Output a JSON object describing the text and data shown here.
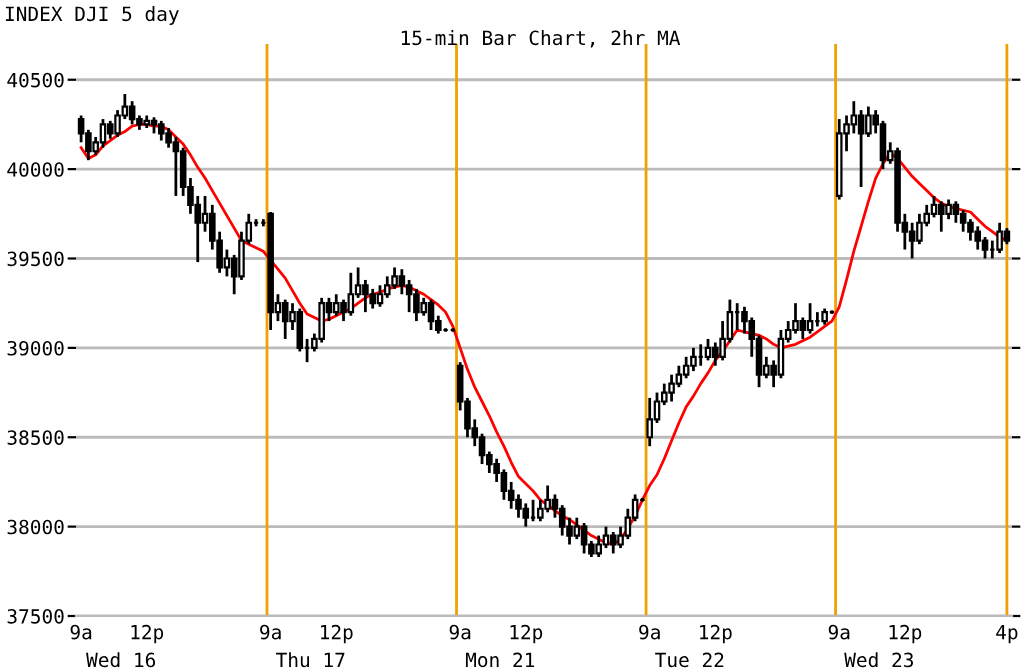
{
  "chart_data": {
    "type": "candlestick",
    "title": "INDEX DJI 5 day",
    "subtitle": "15-min Bar Chart, 2hr MA",
    "categories": [
      "9a",
      null,
      null,
      null,
      null,
      null,
      null,
      null,
      null,
      "12p",
      null,
      null,
      null,
      null,
      null,
      null,
      null,
      null,
      null,
      null,
      null,
      null,
      null,
      null,
      null,
      null,
      "9a",
      null,
      null,
      null,
      null,
      null,
      null,
      null,
      null,
      "12p",
      null,
      null,
      null,
      null,
      null,
      null,
      null,
      null,
      null,
      null,
      null,
      null,
      null,
      null,
      null,
      null,
      "9a",
      null,
      null,
      null,
      null,
      null,
      null,
      null,
      null,
      "12p",
      null,
      null,
      null,
      null,
      null,
      null,
      null,
      null,
      null,
      null,
      null,
      null,
      null,
      null,
      null,
      null,
      "9a",
      null,
      null,
      null,
      null,
      null,
      null,
      null,
      null,
      "12p",
      null,
      null,
      null,
      null,
      null,
      null,
      null,
      null,
      null,
      null,
      null,
      null,
      null,
      null,
      null,
      null,
      "9a",
      null,
      null,
      null,
      null,
      null,
      null,
      null,
      null,
      "12p",
      null,
      null,
      null,
      null,
      null,
      null,
      null,
      null,
      null,
      null,
      null,
      null,
      null,
      "4p"
    ],
    "ohlc": [
      [
        40280,
        40300,
        40150,
        40200
      ],
      [
        40200,
        40220,
        40050,
        40100
      ],
      [
        40100,
        40180,
        40080,
        40150
      ],
      [
        40150,
        40280,
        40120,
        40250
      ],
      [
        40250,
        40270,
        40170,
        40200
      ],
      [
        40200,
        40330,
        40180,
        40300
      ],
      [
        40300,
        40420,
        40280,
        40350
      ],
      [
        40350,
        40380,
        40250,
        40280
      ],
      [
        40280,
        40300,
        40220,
        40250
      ],
      [
        40250,
        40300,
        40230,
        40270
      ],
      [
        40270,
        40290,
        40200,
        40250
      ],
      [
        40250,
        40270,
        40160,
        40200
      ],
      [
        40200,
        40230,
        40120,
        40150
      ],
      [
        40150,
        40180,
        39850,
        40100
      ],
      [
        40100,
        40120,
        39850,
        39900
      ],
      [
        39900,
        39950,
        39750,
        39800
      ],
      [
        39800,
        39850,
        39480,
        39700
      ],
      [
        39700,
        39850,
        39650,
        39750
      ],
      [
        39750,
        39800,
        39550,
        39600
      ],
      [
        39600,
        39650,
        39420,
        39450
      ],
      [
        39450,
        39550,
        39400,
        39500
      ],
      [
        39500,
        39520,
        39300,
        39400
      ],
      [
        39400,
        39650,
        39380,
        39600
      ],
      [
        39600,
        39750,
        39580,
        39700
      ],
      [
        39700,
        39720,
        39680,
        39700
      ],
      [
        39700,
        39720,
        39680,
        39700
      ],
      [
        39750,
        39760,
        39100,
        39200
      ],
      [
        39200,
        39300,
        39150,
        39250
      ],
      [
        39250,
        39270,
        39050,
        39150
      ],
      [
        39150,
        39250,
        39100,
        39200
      ],
      [
        39200,
        39220,
        38980,
        39000
      ],
      [
        39000,
        39050,
        38920,
        39000
      ],
      [
        39000,
        39080,
        38980,
        39050
      ],
      [
        39050,
        39280,
        39030,
        39250
      ],
      [
        39250,
        39280,
        39150,
        39200
      ],
      [
        39200,
        39300,
        39180,
        39250
      ],
      [
        39250,
        39270,
        39150,
        39200
      ],
      [
        39200,
        39420,
        39180,
        39300
      ],
      [
        39300,
        39450,
        39280,
        39350
      ],
      [
        39350,
        39380,
        39200,
        39300
      ],
      [
        39300,
        39330,
        39220,
        39250
      ],
      [
        39250,
        39350,
        39230,
        39300
      ],
      [
        39300,
        39400,
        39280,
        39350
      ],
      [
        39350,
        39450,
        39330,
        39400
      ],
      [
        39400,
        39440,
        39300,
        39350
      ],
      [
        39350,
        39380,
        39200,
        39300
      ],
      [
        39300,
        39330,
        39150,
        39200
      ],
      [
        39200,
        39280,
        39180,
        39250
      ],
      [
        39250,
        39270,
        39100,
        39150
      ],
      [
        39150,
        39180,
        39080,
        39100
      ],
      [
        39100,
        39110,
        39090,
        39100
      ],
      [
        39100,
        39110,
        39090,
        39100
      ],
      [
        38900,
        38920,
        38650,
        38700
      ],
      [
        38700,
        38720,
        38500,
        38550
      ],
      [
        38550,
        38600,
        38450,
        38500
      ],
      [
        38500,
        38520,
        38350,
        38400
      ],
      [
        38400,
        38420,
        38300,
        38350
      ],
      [
        38350,
        38380,
        38250,
        38300
      ],
      [
        38300,
        38320,
        38150,
        38200
      ],
      [
        38200,
        38250,
        38100,
        38150
      ],
      [
        38150,
        38180,
        38050,
        38100
      ],
      [
        38100,
        38130,
        38000,
        38050
      ],
      [
        38050,
        38150,
        38030,
        38050
      ],
      [
        38050,
        38150,
        38030,
        38100
      ],
      [
        38100,
        38230,
        38080,
        38150
      ],
      [
        38150,
        38180,
        38050,
        38100
      ],
      [
        38100,
        38120,
        37950,
        38000
      ],
      [
        38000,
        38050,
        37900,
        37950
      ],
      [
        37950,
        38050,
        37930,
        38000
      ],
      [
        38000,
        38020,
        37850,
        37900
      ],
      [
        37900,
        37920,
        37830,
        37850
      ],
      [
        37850,
        37950,
        37830,
        37900
      ],
      [
        37900,
        38000,
        37880,
        37950
      ],
      [
        37950,
        37970,
        37850,
        37900
      ],
      [
        37900,
        38000,
        37880,
        37950
      ],
      [
        37950,
        38100,
        37930,
        38050
      ],
      [
        38050,
        38180,
        38030,
        38150
      ],
      [
        38150,
        38160,
        38140,
        38150
      ],
      [
        38500,
        38720,
        38450,
        38600
      ],
      [
        38600,
        38750,
        38580,
        38700
      ],
      [
        38700,
        38800,
        38680,
        38750
      ],
      [
        38750,
        38850,
        38700,
        38800
      ],
      [
        38800,
        38900,
        38780,
        38850
      ],
      [
        38850,
        38950,
        38830,
        38900
      ],
      [
        38900,
        39000,
        38870,
        38950
      ],
      [
        38950,
        39020,
        38900,
        38950
      ],
      [
        38950,
        39050,
        38930,
        39000
      ],
      [
        39000,
        39030,
        38900,
        38950
      ],
      [
        38950,
        39150,
        38930,
        39050
      ],
      [
        39050,
        39270,
        39030,
        39200
      ],
      [
        39200,
        39250,
        39100,
        39200
      ],
      [
        39200,
        39230,
        39080,
        39150
      ],
      [
        39150,
        39170,
        38950,
        39050
      ],
      [
        39050,
        39070,
        38780,
        38850
      ],
      [
        38850,
        38950,
        38830,
        38900
      ],
      [
        38900,
        38930,
        38780,
        38850
      ],
      [
        38850,
        39100,
        38830,
        39050
      ],
      [
        39050,
        39150,
        39030,
        39100
      ],
      [
        39100,
        39250,
        39080,
        39150
      ],
      [
        39150,
        39170,
        39050,
        39100
      ],
      [
        39100,
        39250,
        39080,
        39150
      ],
      [
        39150,
        39200,
        39120,
        39150
      ],
      [
        39150,
        39220,
        39130,
        39200
      ],
      [
        39200,
        39210,
        39190,
        39200
      ],
      [
        39850,
        40280,
        39830,
        40200
      ],
      [
        40200,
        40300,
        40100,
        40250
      ],
      [
        40250,
        40380,
        40200,
        40300
      ],
      [
        40300,
        40330,
        39900,
        40200
      ],
      [
        40200,
        40350,
        40180,
        40300
      ],
      [
        40300,
        40330,
        40200,
        40250
      ],
      [
        40250,
        40270,
        40000,
        40050
      ],
      [
        40050,
        40150,
        40030,
        40100
      ],
      [
        40100,
        40120,
        39650,
        39700
      ],
      [
        39700,
        39750,
        39550,
        39650
      ],
      [
        39650,
        39700,
        39500,
        39600
      ],
      [
        39600,
        39750,
        39580,
        39700
      ],
      [
        39700,
        39800,
        39680,
        39750
      ],
      [
        39750,
        39850,
        39730,
        39800
      ],
      [
        39800,
        39820,
        39650,
        39750
      ],
      [
        39750,
        39830,
        39720,
        39800
      ],
      [
        39800,
        39820,
        39700,
        39750
      ],
      [
        39750,
        39770,
        39650,
        39700
      ],
      [
        39700,
        39720,
        39600,
        39650
      ],
      [
        39650,
        39680,
        39550,
        39600
      ],
      [
        39600,
        39620,
        39500,
        39550
      ],
      [
        39550,
        39600,
        39500,
        39550
      ],
      [
        39550,
        39700,
        39530,
        39650
      ],
      [
        39650,
        39670,
        39580,
        39600
      ]
    ],
    "series": [
      {
        "type": "line",
        "color": "#ff0000",
        "values": [
          40120,
          40060,
          40080,
          40130,
          40160,
          40190,
          40210,
          40240,
          40250,
          40250,
          40240,
          40240,
          40220,
          40180,
          40140,
          40080,
          40010,
          39950,
          39880,
          39810,
          39740,
          39670,
          39600,
          39580,
          39560,
          39540,
          39490,
          39440,
          39390,
          39320,
          39250,
          39190,
          39170,
          39150,
          39160,
          39180,
          39200,
          39220,
          39250,
          39280,
          39300,
          39310,
          39330,
          39340,
          39350,
          39340,
          39320,
          39300,
          39270,
          39240,
          39200,
          39120,
          39000,
          38880,
          38780,
          38700,
          38620,
          38530,
          38450,
          38360,
          38280,
          38240,
          38200,
          38150,
          38120,
          38090,
          38060,
          38040,
          38010,
          37980,
          37950,
          37930,
          37910,
          37900,
          37930,
          37990,
          38060,
          38150,
          38230,
          38290,
          38380,
          38480,
          38580,
          38670,
          38730,
          38800,
          38860,
          38930,
          38980,
          39040,
          39100,
          39090,
          39080,
          39070,
          39050,
          39020,
          39000,
          39010,
          39020,
          39040,
          39060,
          39090,
          39120,
          39150,
          39230,
          39380,
          39540,
          39680,
          39820,
          39950,
          40030,
          40090,
          40060,
          40010,
          39960,
          39920,
          39880,
          39840,
          39810,
          39790,
          39780,
          39770,
          39760,
          39720,
          39680,
          39650,
          39620,
          39600
        ]
      }
    ],
    "color": "#000000",
    "ylim": [
      37500,
      40700
    ],
    "yticks": [
      37500,
      38000,
      38500,
      39000,
      39500,
      40000,
      40500
    ],
    "annotations": [
      "Wed 16",
      "Thu 17",
      "Mon 21",
      "Tue 22",
      "Wed 23"
    ],
    "grid": "y"
  }
}
